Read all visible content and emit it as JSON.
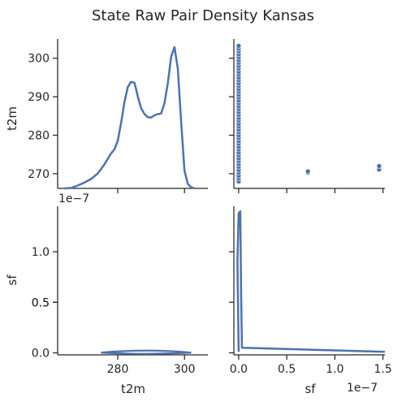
{
  "chart_data": {
    "type": "pairplot",
    "title": "State Raw Pair Density Kansas",
    "variables": [
      "t2m",
      "sf"
    ],
    "color": "#4c72b0",
    "t2m_axis": {
      "label": "t2m",
      "ticks": [
        270,
        280,
        290,
        300
      ],
      "bottom_ticks": [
        280,
        300
      ],
      "range": [
        262,
        307
      ]
    },
    "sf_axis": {
      "label": "sf",
      "ticks": [
        "0.0",
        "0.5",
        "1.0",
        "1.5"
      ],
      "offset_label": "1e−7",
      "range": [
        -5e-09,
        1.52e-07
      ]
    },
    "density_axis": {
      "offset_label": "1e−7",
      "ticks": [
        "0.0",
        "0.5",
        "1.0"
      ],
      "range": [
        0,
        1.45
      ]
    },
    "t2m_kde": {
      "x": [
        264,
        266,
        268,
        270,
        272,
        274,
        276,
        277,
        278,
        279,
        280,
        281,
        282,
        283,
        284,
        285,
        285.5,
        286,
        287,
        288,
        289,
        290,
        291,
        292,
        293,
        294,
        295,
        296,
        297,
        298,
        299,
        300,
        301,
        302,
        303
      ],
      "density": [
        0,
        0.2,
        1.3,
        2.6,
        4.2,
        6.7,
        10.8,
        13.3,
        15.8,
        17.6,
        21.5,
        29.5,
        38.8,
        45.7,
        48.1,
        47.7,
        44.8,
        41.5,
        36.2,
        33.6,
        32.2,
        32.0,
        33.0,
        33.5,
        33.8,
        38.5,
        47.6,
        59.5,
        63.8,
        54.0,
        30.0,
        8.0,
        2.0,
        0.5,
        0
      ]
    },
    "scatter_points": [
      {
        "sf": 0,
        "t2m": 268.0
      },
      {
        "sf": 0,
        "t2m": 268.8
      },
      {
        "sf": 0,
        "t2m": 269.5
      },
      {
        "sf": 0,
        "t2m": 270.3
      },
      {
        "sf": 0,
        "t2m": 271.0
      },
      {
        "sf": 0,
        "t2m": 271.8
      },
      {
        "sf": 0,
        "t2m": 272.5
      },
      {
        "sf": 0,
        "t2m": 273.3
      },
      {
        "sf": 0,
        "t2m": 274.0
      },
      {
        "sf": 0,
        "t2m": 274.8
      },
      {
        "sf": 0,
        "t2m": 275.5
      },
      {
        "sf": 0,
        "t2m": 276.3
      },
      {
        "sf": 0,
        "t2m": 277.0
      },
      {
        "sf": 0,
        "t2m": 277.8
      },
      {
        "sf": 0,
        "t2m": 278.5
      },
      {
        "sf": 0,
        "t2m": 279.3
      },
      {
        "sf": 0,
        "t2m": 280.0
      },
      {
        "sf": 0,
        "t2m": 280.8
      },
      {
        "sf": 0,
        "t2m": 281.5
      },
      {
        "sf": 0,
        "t2m": 282.3
      },
      {
        "sf": 0,
        "t2m": 283.0
      },
      {
        "sf": 0,
        "t2m": 283.8
      },
      {
        "sf": 0,
        "t2m": 284.5
      },
      {
        "sf": 0,
        "t2m": 285.3
      },
      {
        "sf": 0,
        "t2m": 286.0
      },
      {
        "sf": 0,
        "t2m": 286.8
      },
      {
        "sf": 0,
        "t2m": 287.5
      },
      {
        "sf": 0,
        "t2m": 288.3
      },
      {
        "sf": 0,
        "t2m": 289.0
      },
      {
        "sf": 0,
        "t2m": 289.8
      },
      {
        "sf": 0,
        "t2m": 290.5
      },
      {
        "sf": 0,
        "t2m": 291.3
      },
      {
        "sf": 0,
        "t2m": 292.0
      },
      {
        "sf": 0,
        "t2m": 292.8
      },
      {
        "sf": 0,
        "t2m": 293.5
      },
      {
        "sf": 0,
        "t2m": 294.3
      },
      {
        "sf": 0,
        "t2m": 295.0
      },
      {
        "sf": 0,
        "t2m": 295.8
      },
      {
        "sf": 0,
        "t2m": 296.5
      },
      {
        "sf": 0,
        "t2m": 297.3
      },
      {
        "sf": 0,
        "t2m": 298.0
      },
      {
        "sf": 0,
        "t2m": 298.8
      },
      {
        "sf": 0,
        "t2m": 299.5
      },
      {
        "sf": 0,
        "t2m": 300.3
      },
      {
        "sf": 0,
        "t2m": 301.0
      },
      {
        "sf": 0,
        "t2m": 301.8
      },
      {
        "sf": 0,
        "t2m": 302.5
      },
      {
        "sf": 0,
        "t2m": 303.2
      },
      {
        "sf": 7.2e-08,
        "t2m": 270.3
      },
      {
        "sf": 7.2e-08,
        "t2m": 270.6
      },
      {
        "sf": 1.46e-07,
        "t2m": 271.1
      },
      {
        "sf": 1.46e-07,
        "t2m": 272.0
      }
    ],
    "sf_kde": {
      "x": [
        0,
        1e-09,
        2e-09,
        3e-09,
        4e-09,
        1.52e-07
      ],
      "density": [
        1.38,
        1.4,
        1.1,
        0.3,
        0.01,
        0.01
      ]
    },
    "bivariate_kde": {
      "x_range": [
        275,
        302
      ],
      "sf_level": 0.01
    }
  }
}
